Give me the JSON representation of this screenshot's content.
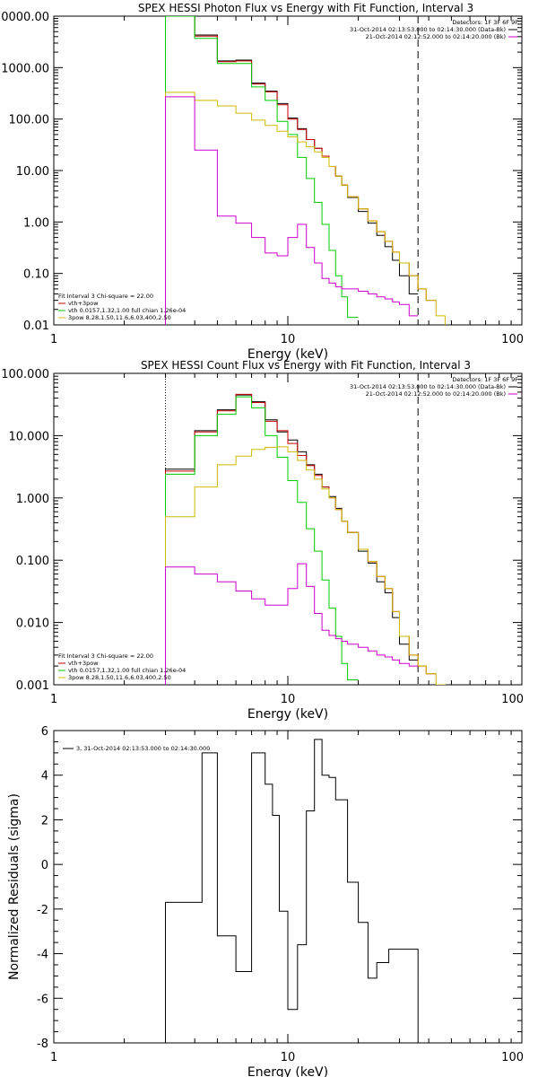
{
  "chart_data": [
    {
      "type": "line",
      "title": "SPEX HESSI Photon Flux vs Energy with Fit Function, Interval 3",
      "xlabel": "Energy (keV)",
      "ylabel": "",
      "xscale": "log",
      "yscale": "log",
      "xlim": [
        1,
        100
      ],
      "ylim": [
        0.01,
        10000
      ],
      "x_ticks": [
        "1",
        "10",
        "100"
      ],
      "y_ticks": [
        "10000.00",
        "1000.00",
        "100.00",
        "10.00",
        "1.00",
        "0.10",
        "0.01"
      ],
      "detector_header": "Detectors: 1F 3F 6F 9F",
      "time_legend": [
        {
          "label": "31-Oct-2014 02:13:53.000 to 02:14:30.000 (Data-Bk)",
          "color": "#000000"
        },
        {
          "label": "21-Oct-2014 02:12:52.000 to 02:14:20.000 (Bk)",
          "color": "#cc00cc"
        }
      ],
      "fit_legend": [
        {
          "label": "Fit Interval 3   Chi-square = 22.00",
          "color": "#000000"
        },
        {
          "label": "vth+3pow",
          "color": "#cc0000"
        },
        {
          "label": "vth 0.0157,1.32,1.00  full chian 1.26e-04",
          "color": "#00cc00"
        },
        {
          "label": "3pow 8.28,1.50,11.6,6.03,400,2.50",
          "color": "#ccbb00"
        }
      ],
      "edges": [
        3.0,
        4.0,
        5.0,
        6.0,
        7.0,
        8.0,
        9.0,
        10.0,
        11.0,
        12.0,
        13.0,
        14.0,
        15.0,
        16.0,
        17.0,
        18.0,
        20.0,
        22.0,
        24.0,
        26.0,
        28.0,
        30.0,
        33.0,
        36.0,
        39.0,
        43.0,
        47.0
      ],
      "vlines": {
        "dotted": 3.0,
        "dashed": 36.0
      },
      "series": [
        {
          "name": "Data-Bk",
          "color": "#000000",
          "values": [
            10000,
            4300,
            1350,
            1400,
            500,
            350,
            200,
            105,
            65,
            40,
            27,
            19,
            12,
            7.8,
            5.2,
            3.0,
            1.6,
            0.95,
            0.55,
            0.33,
            0.18,
            0.09,
            0.04,
            null,
            null,
            null
          ]
        },
        {
          "name": "vth+3pow",
          "color": "#cc0000",
          "values": [
            10000,
            4100,
            1300,
            1350,
            480,
            340,
            190,
            100,
            63,
            40,
            27,
            19,
            12,
            7.8,
            5.2,
            3.1,
            1.8,
            1.05,
            0.65,
            0.42,
            0.26,
            0.16,
            0.09,
            0.05,
            0.03,
            null
          ]
        },
        {
          "name": "vth",
          "color": "#00cc00",
          "values": [
            10000,
            3700,
            1200,
            1200,
            420,
            230,
            90,
            50,
            18,
            7,
            2.4,
            0.9,
            0.28,
            0.09,
            0.035,
            0.014,
            null,
            null,
            null,
            null,
            null,
            null,
            null,
            null,
            null,
            null
          ]
        },
        {
          "name": "3pow",
          "color": "#ccbb00",
          "values": [
            330,
            230,
            180,
            130,
            95,
            75,
            58,
            45,
            36,
            29,
            23,
            18,
            12,
            7.8,
            5.2,
            3.1,
            1.8,
            1.05,
            0.65,
            0.42,
            0.26,
            0.16,
            0.09,
            0.05,
            0.03,
            0.015
          ]
        },
        {
          "name": "Bk",
          "color": "#cc00cc",
          "values": [
            270,
            25,
            1.3,
            0.95,
            0.5,
            0.25,
            0.22,
            0.5,
            0.9,
            0.32,
            0.16,
            0.08,
            0.065,
            0.055,
            0.05,
            0.05,
            0.045,
            0.04,
            0.035,
            0.032,
            0.028,
            0.025,
            0.015,
            null,
            null,
            null
          ]
        }
      ]
    },
    {
      "type": "line",
      "title": "SPEX HESSI Count Flux vs Energy with Fit Function, Interval 3",
      "xlabel": "Energy (keV)",
      "ylabel": "",
      "xscale": "log",
      "yscale": "log",
      "xlim": [
        1,
        100
      ],
      "ylim": [
        0.001,
        100
      ],
      "x_ticks": [
        "1",
        "10",
        "100"
      ],
      "y_ticks": [
        "100.000",
        "10.000",
        "1.000",
        "0.100",
        "0.010",
        "0.001"
      ],
      "detector_header": "Detectors: 1F 3F 6F 9F",
      "time_legend": [
        {
          "label": "31-Oct-2014 02:13:53.000 to 02:14:30.000 (Data-Bk)",
          "color": "#000000"
        },
        {
          "label": "21-Oct-2014 02:12:52.000 to 02:14:20.000 (Bk)",
          "color": "#cc00cc"
        }
      ],
      "fit_legend": [
        {
          "label": "Fit Interval 3   Chi-square = 22.00",
          "color": "#000000"
        },
        {
          "label": "vth+3pow",
          "color": "#cc0000"
        },
        {
          "label": "vth 0.0157,1.32,1.00  full chian 1.26e-04",
          "color": "#00cc00"
        },
        {
          "label": "3pow 8.28,1.50,11.6,6.03,400,2.50",
          "color": "#ccbb00"
        }
      ],
      "edges": [
        3.0,
        4.0,
        5.0,
        6.0,
        7.0,
        8.0,
        9.0,
        10.0,
        11.0,
        12.0,
        13.0,
        14.0,
        15.0,
        16.0,
        17.0,
        18.0,
        20.0,
        22.0,
        24.0,
        26.0,
        28.0,
        30.0,
        33.0,
        36.0,
        39.0,
        43.0,
        47.0
      ],
      "vlines": {
        "dotted": 3.0,
        "dashed": 36.0
      },
      "series": [
        {
          "name": "Data-Bk",
          "color": "#000000",
          "values": [
            2.9,
            12,
            26,
            45,
            35,
            18,
            11.5,
            8.5,
            5.5,
            3.4,
            2.4,
            1.5,
            1.05,
            0.68,
            0.42,
            0.28,
            0.14,
            0.09,
            0.045,
            0.03,
            0.012,
            0.0045,
            0.0025,
            null,
            null,
            null
          ]
        },
        {
          "name": "vth+3pow",
          "color": "#cc0000",
          "values": [
            2.7,
            11.5,
            25,
            46,
            34,
            17,
            12,
            7.5,
            4.8,
            3.3,
            2.3,
            1.5,
            1.0,
            0.65,
            0.42,
            0.28,
            0.15,
            0.095,
            0.055,
            0.035,
            0.015,
            0.006,
            0.003,
            0.002,
            0.0015,
            null
          ]
        },
        {
          "name": "vth",
          "color": "#00cc00",
          "values": [
            2.4,
            10,
            22,
            42,
            28,
            10,
            4.5,
            1.9,
            0.85,
            0.32,
            0.14,
            0.048,
            0.017,
            0.006,
            0.0022,
            0.0012,
            null,
            null,
            null,
            null,
            null,
            null,
            null,
            null,
            null,
            null
          ]
        },
        {
          "name": "3pow",
          "color": "#ccbb00",
          "values": [
            0.5,
            1.5,
            3.4,
            4.7,
            6.0,
            6.5,
            6.6,
            5.5,
            4.0,
            2.8,
            2.0,
            1.4,
            1.0,
            0.65,
            0.42,
            0.28,
            0.15,
            0.095,
            0.055,
            0.035,
            0.015,
            0.006,
            0.003,
            0.002,
            0.0015,
            0.001
          ]
        },
        {
          "name": "Bk",
          "color": "#cc00cc",
          "values": [
            0.078,
            0.06,
            0.045,
            0.032,
            0.024,
            0.019,
            0.019,
            0.035,
            0.088,
            0.038,
            0.014,
            0.0075,
            0.0062,
            0.0055,
            0.005,
            0.0045,
            0.004,
            0.0035,
            0.003,
            0.0028,
            0.0025,
            0.0022,
            0.002,
            null,
            null,
            null
          ]
        }
      ]
    },
    {
      "type": "line",
      "title": "",
      "xlabel": "Energy (keV)",
      "ylabel": "Normalized Residuals (sigma)",
      "xscale": "log",
      "yscale": "linear",
      "xlim": [
        1,
        100
      ],
      "ylim": [
        -8,
        6
      ],
      "x_ticks": [
        "1",
        "10",
        "100"
      ],
      "y_ticks": [
        "6",
        "4",
        "2",
        "0",
        "-2",
        "-4",
        "-6",
        "-8"
      ],
      "legend": [
        {
          "label": "3, 31-Oct-2014 02:13:53.000 to 02:14:30.000",
          "color": "#000000"
        }
      ],
      "edges": [
        3.0,
        3.5,
        4.3,
        5.0,
        6.0,
        7.0,
        8.0,
        8.6,
        9.2,
        10.0,
        11.0,
        12.0,
        13.0,
        14.0,
        15.0,
        16.0,
        18.0,
        20.0,
        22.0,
        24.0,
        27.0,
        30.0,
        33.0,
        36.0
      ],
      "vlines": {},
      "series": [
        {
          "name": "Residuals",
          "color": "#000000",
          "values": [
            -1.7,
            -1.7,
            5.0,
            -3.2,
            -4.8,
            5.0,
            3.6,
            2.2,
            -2.1,
            -6.5,
            -3.6,
            2.4,
            5.6,
            4.0,
            3.9,
            2.9,
            -0.8,
            -2.6,
            -5.1,
            -4.4,
            -3.8,
            -3.8,
            -3.8
          ]
        }
      ]
    }
  ]
}
